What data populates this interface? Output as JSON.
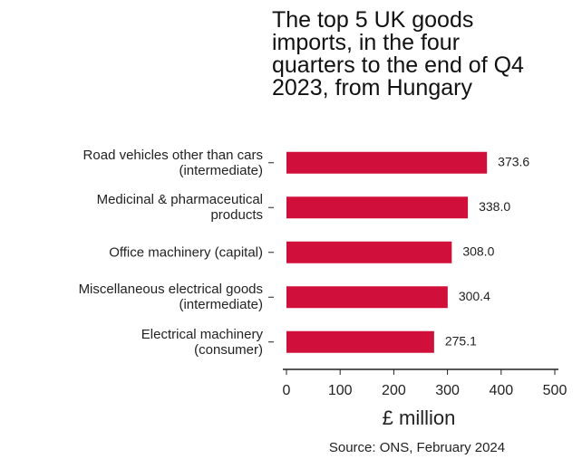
{
  "chart_data": {
    "type": "barh",
    "title": "The top 5 UK goods\nimports, in the four\nquarters to the end of Q4\n2023, from Hungary",
    "categories": [
      "Road vehicles other than cars\n(intermediate)",
      "Medicinal & pharmaceutical\nproducts",
      "Office machinery (capital)",
      "Miscellaneous electrical goods\n(intermediate)",
      "Electrical machinery\n(consumer)"
    ],
    "values": [
      373.6,
      338.0,
      308.0,
      300.4,
      275.1
    ],
    "value_labels": [
      "373.6",
      "338.0",
      "308.0",
      "300.4",
      "275.1"
    ],
    "color": "#d0103a",
    "xlabel": "£ million",
    "xlim": [
      0,
      500
    ],
    "xticks": [
      0,
      100,
      200,
      300,
      400,
      500
    ],
    "source": "Source: ONS, February 2024"
  }
}
